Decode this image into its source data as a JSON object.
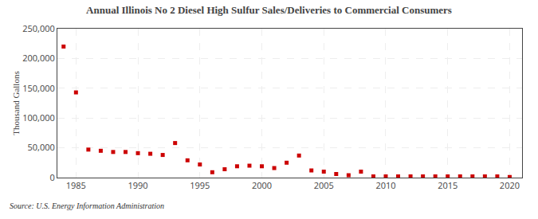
{
  "chart_data": {
    "type": "scatter",
    "title": "Annual Illinois No 2 Diesel High Sulfur Sales/Deliveries to Commercial Consumers",
    "ylabel": "Thousand Gallons",
    "annotations": [
      "Source: U.S. Energy Information Administration"
    ],
    "x": [
      1984,
      1985,
      1986,
      1987,
      1988,
      1989,
      1990,
      1991,
      1992,
      1993,
      1994,
      1995,
      1996,
      1997,
      1998,
      1999,
      2000,
      2001,
      2002,
      2003,
      2004,
      2005,
      2006,
      2007,
      2008,
      2009,
      2010,
      2011,
      2012,
      2013,
      2014,
      2015,
      2016,
      2017,
      2018,
      2019,
      2020
    ],
    "values": [
      220000,
      143000,
      47000,
      45000,
      43000,
      43000,
      41000,
      40000,
      38000,
      58000,
      29000,
      22000,
      9000,
      14000,
      19000,
      20000,
      19000,
      16000,
      25000,
      37000,
      12000,
      10000,
      6000,
      4000,
      10000,
      2000,
      2000,
      2000,
      2000,
      2000,
      2000,
      2000,
      2000,
      2000,
      2000,
      2000,
      1000
    ],
    "color": "#cc0000",
    "marker": "square",
    "xlim": [
      1983.5,
      2021
    ],
    "xticks": [
      1985,
      1990,
      1995,
      2000,
      2005,
      2010,
      2015,
      2020
    ],
    "ylim": [
      0,
      250000
    ],
    "yticks": [
      0,
      {
        "value": 50000,
        "label": "50,000"
      },
      {
        "value": 100000,
        "label": "100,000"
      },
      {
        "value": 150000,
        "label": "150,000"
      },
      {
        "value": 200000,
        "label": "200,000"
      },
      {
        "value": 250000,
        "label": "250,000"
      }
    ],
    "grid": true
  }
}
